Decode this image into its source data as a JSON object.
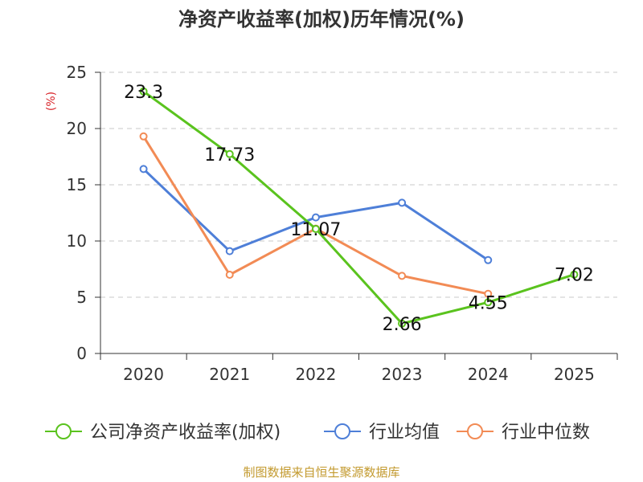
{
  "chart_data": {
    "type": "line",
    "title": "净资产收益率(加权)历年情况(%)",
    "ylabel": "(%)",
    "xlabel": "",
    "ylim": [
      0,
      25
    ],
    "yticks": [
      0,
      5,
      10,
      15,
      20,
      25
    ],
    "grid": true,
    "legend_position": "bottom",
    "categories": [
      "2020",
      "2021",
      "2022",
      "2023",
      "2024",
      "2025"
    ],
    "series": [
      {
        "name": "公司净资产收益率(加权)",
        "color": "#5ac31e",
        "values": [
          23.3,
          17.73,
          11.07,
          2.66,
          4.55,
          7.02
        ],
        "data_labels": [
          "23.3",
          "17.73",
          "11.07",
          "2.66",
          "4.55",
          "7.02"
        ]
      },
      {
        "name": "行业均值",
        "color": "#4e7fd8",
        "values": [
          16.4,
          9.1,
          12.1,
          13.4,
          8.3,
          null
        ]
      },
      {
        "name": "行业中位数",
        "color": "#f28b55",
        "values": [
          19.3,
          7.0,
          11.1,
          6.9,
          5.3,
          null
        ]
      }
    ],
    "source": "制图数据来自恒生聚源数据库"
  }
}
